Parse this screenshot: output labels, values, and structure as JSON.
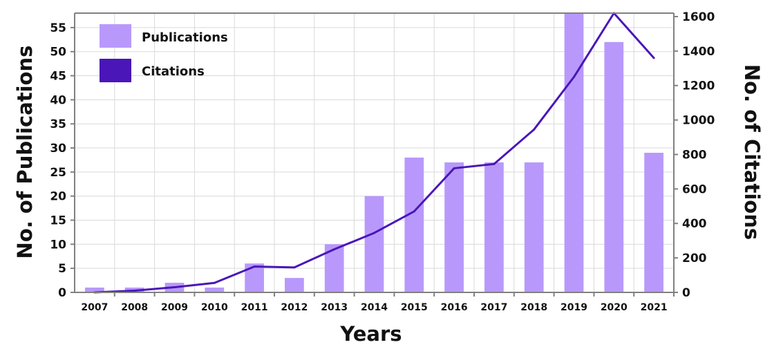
{
  "chart_data": {
    "type": "bar+line",
    "categories": [
      "2007",
      "2008",
      "2009",
      "2010",
      "2011",
      "2012",
      "2013",
      "2014",
      "2015",
      "2016",
      "2017",
      "2018",
      "2019",
      "2020",
      "2021"
    ],
    "series": [
      {
        "name": "Publications",
        "type": "bar",
        "axis": "left",
        "color": "#b899fb",
        "values": [
          1,
          1,
          2,
          1,
          6,
          3,
          10,
          20,
          28,
          27,
          27,
          27,
          58,
          52,
          29
        ]
      },
      {
        "name": "Citations",
        "type": "line",
        "axis": "right",
        "color": "#4a16b8",
        "values": [
          0,
          10,
          30,
          55,
          150,
          145,
          250,
          345,
          470,
          720,
          745,
          945,
          1250,
          1620,
          1360
        ]
      }
    ],
    "xlabel": "Years",
    "ylabel_left": "No. of Publications",
    "ylabel_right": "No. of Citations",
    "ylim_left": [
      0,
      58
    ],
    "yticks_left": [
      "0",
      "5",
      "10",
      "15",
      "20",
      "25",
      "30",
      "35",
      "40",
      "45",
      "50",
      "55"
    ],
    "ylim_right": [
      0,
      1620
    ],
    "yticks_right": [
      "0",
      "200",
      "400",
      "600",
      "800",
      "1000",
      "1200",
      "1400",
      "1600"
    ],
    "grid": true,
    "legend_position": "top-left"
  }
}
